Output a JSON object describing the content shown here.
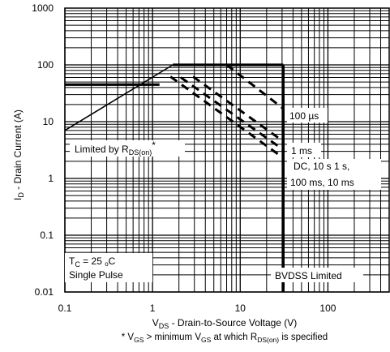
{
  "chart_data": {
    "type": "line",
    "x_scale": "log",
    "y_scale": "log",
    "xlim": [
      0.1,
      500
    ],
    "ylim": [
      0.01,
      1000
    ],
    "grid": true,
    "x_ticks": [
      {
        "value": 0.1,
        "label": "0.1"
      },
      {
        "value": 1,
        "label": "1"
      },
      {
        "value": 10,
        "label": "10"
      },
      {
        "value": 100,
        "label": "100"
      }
    ],
    "y_ticks": [
      {
        "value": 1000,
        "label": "1000"
      },
      {
        "value": 100,
        "label": "100"
      },
      {
        "value": 10,
        "label": "10"
      },
      {
        "value": 1,
        "label": "1"
      },
      {
        "value": 0.1,
        "label": "0.1"
      },
      {
        "value": 0.01,
        "label": "0.01"
      }
    ],
    "ylabel": {
      "pre": "I",
      "sub": "D",
      "post": " - Drain Current (A)"
    },
    "xlabel": {
      "pre": "V",
      "sub": "DS",
      "post": " - Drain-to-Source Voltage (V)"
    },
    "footnote": {
      "p1": "* V",
      "s1": "GS",
      "p2": " > minimum V",
      "s2": "GS",
      "p3": " at which R",
      "s3": "DS(on)",
      "p4": " is specified"
    },
    "lines": [
      {
        "id": "rds-limit",
        "style": "solid",
        "x": [
          0.1,
          1.7
        ],
        "y": [
          7,
          100
        ]
      },
      {
        "id": "current-limit-pulse",
        "style": "solid",
        "x": [
          1.7,
          31
        ],
        "y": [
          100,
          100
        ]
      },
      {
        "id": "current-limit-dc",
        "style": "solid",
        "x": [
          0.1,
          1.2
        ],
        "y": [
          45,
          45
        ]
      },
      {
        "id": "bvdss-limit",
        "style": "solid",
        "x": [
          31,
          31
        ],
        "y": [
          100,
          0.01
        ]
      },
      {
        "id": "pulse-100us",
        "style": "dashed",
        "x": [
          7,
          31
        ],
        "y": [
          100,
          17
        ]
      },
      {
        "id": "pulse-1ms",
        "style": "dashed",
        "x": [
          2.9,
          31
        ],
        "y": [
          62,
          4.5
        ]
      },
      {
        "id": "pulse-10ms",
        "style": "dashed",
        "x": [
          2.1,
          31
        ],
        "y": [
          60,
          3.2
        ]
      },
      {
        "id": "pulse-dc-10s-1s-100ms",
        "style": "dashed",
        "x": [
          1.6,
          31
        ],
        "y": [
          62,
          2.3
        ]
      }
    ],
    "annotations": {
      "rds": {
        "pre": "Limited by R",
        "sub": "DS(on)",
        "post": "*"
      },
      "pulse_100us": "100 µs",
      "pulse_1ms": "1 ms",
      "dc_line1": "DC, 10 s 1 s,",
      "dc_line2": "100 ms, 10 ms",
      "tc": {
        "pre": "T",
        "sub": "C",
        "mid": " = 25 ",
        "sup": "o",
        "post": "C"
      },
      "single_pulse": "Single Pulse",
      "bvdss": "BVDSS Limited"
    }
  }
}
